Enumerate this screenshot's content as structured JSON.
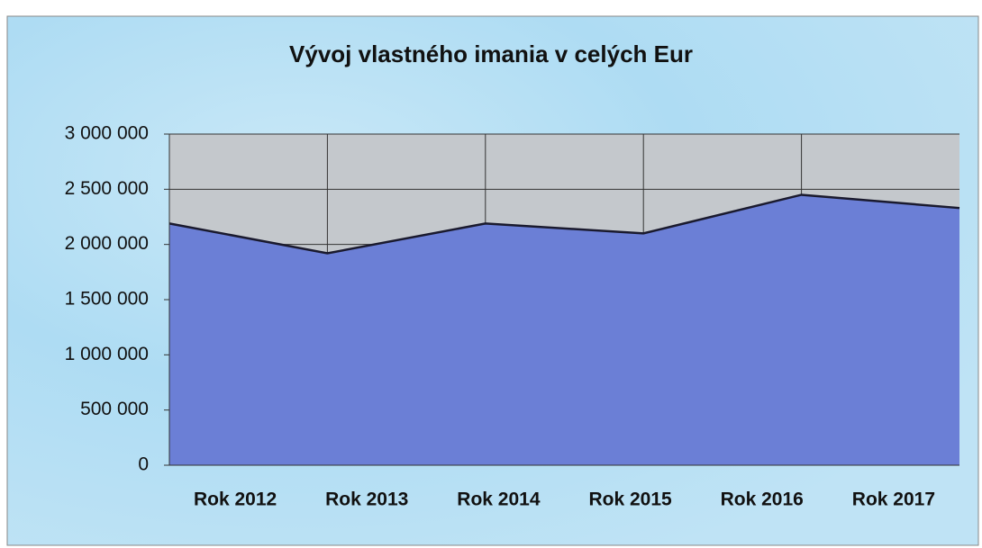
{
  "chart_data": {
    "type": "area",
    "title": "Vývoj vlastného imania v celých Eur",
    "categories": [
      "Rok 2012",
      "Rok 2013",
      "Rok 2014",
      "Rok 2015",
      "Rok 2016",
      "Rok 2017"
    ],
    "values": [
      2190000,
      1920000,
      2190000,
      2100000,
      2450000,
      2330000
    ],
    "color": "#6b7fd6",
    "ylim": [
      0,
      3000000
    ],
    "yticks": [
      0,
      {
        "value": 500000,
        "label": "500 000"
      },
      {
        "value": 1000000,
        "label": "1 000 000"
      },
      {
        "value": 1500000,
        "label": "1 500 000"
      },
      {
        "value": 2000000,
        "label": "2 000 000"
      },
      {
        "value": 2500000,
        "label": "2 500 000"
      },
      {
        "value": 3000000,
        "label": "3 000 000"
      }
    ],
    "grid": true
  }
}
